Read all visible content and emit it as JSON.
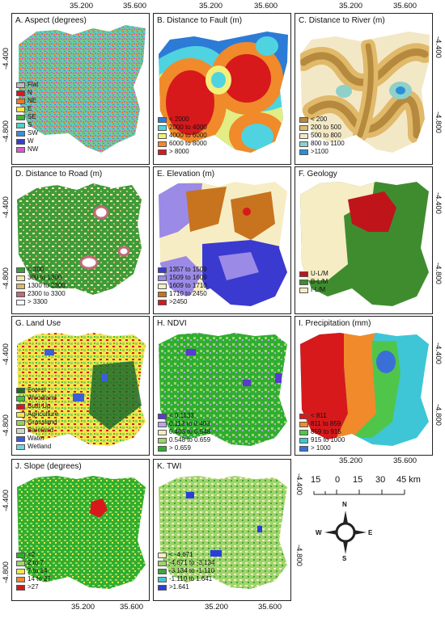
{
  "coords": {
    "top_x": [
      "35.200",
      "35.600",
      "35.200",
      "35.600",
      "35.200",
      "35.600"
    ],
    "bottom_x": [
      "35.200",
      "35.600",
      "35.200",
      "35.600",
      "35.200",
      "35.600"
    ],
    "left_y": [
      "-4.400",
      "-4.800",
      "-4.400",
      "-4.800",
      "-4.400",
      "-4.800",
      "-4.400",
      "-4.800"
    ],
    "right_y": [
      "-4.400",
      "-4.800",
      "-4.400",
      "-4.800",
      "-4.400",
      "-4.800",
      "-4.400",
      "-4.800"
    ]
  },
  "panels": [
    {
      "title": "A. Aspect (degrees)",
      "legend": [
        {
          "label": "Flat",
          "color": "#bdbdbd"
        },
        {
          "label": "N",
          "color": "#d7191c"
        },
        {
          "label": "NE",
          "color": "#e97a25"
        },
        {
          "label": "E",
          "color": "#f7e83a"
        },
        {
          "label": "SE",
          "color": "#3cb43c"
        },
        {
          "label": "S",
          "color": "#4fd3c8"
        },
        {
          "label": "SW",
          "color": "#3a8fd8"
        },
        {
          "label": "W",
          "color": "#3a3ad0"
        },
        {
          "label": "NW",
          "color": "#d85ad2"
        }
      ]
    },
    {
      "title": "B. Distance to Fault (m)",
      "legend": [
        {
          "label": "< 2000",
          "color": "#2c7bd6"
        },
        {
          "label": "2000 to 4000",
          "color": "#4fd3e0"
        },
        {
          "label": "4000 to 6000",
          "color": "#f2f07a"
        },
        {
          "label": "6000 to 8000",
          "color": "#f08a2a"
        },
        {
          "label": "> 8000",
          "color": "#d7191c"
        }
      ]
    },
    {
      "title": "C. Distance to River (m)",
      "legend": [
        {
          "label": "< 200",
          "color": "#b58a3e"
        },
        {
          "label": "200 to 500",
          "color": "#e0b96a"
        },
        {
          "label": "500 to 800",
          "color": "#f3e8c6"
        },
        {
          "label": "800 to 1100",
          "color": "#8fd0c9"
        },
        {
          "label": ">1100",
          "color": "#2a8fd8"
        }
      ]
    },
    {
      "title": "D. Distance to Road (m)",
      "legend": [
        {
          "label": "< 300",
          "color": "#3d9b3a"
        },
        {
          "label": "300 to 1300",
          "color": "#f3e5a8"
        },
        {
          "label": "1300 to 2300",
          "color": "#d8b86a"
        },
        {
          "label": "2300 to 3300",
          "color": "#c06a7a"
        },
        {
          "label": "> 3300",
          "color": "#ffffff"
        }
      ]
    },
    {
      "title": "E. Elevation (m)",
      "legend": [
        {
          "label": "1357 to 1509",
          "color": "#3a3ad0"
        },
        {
          "label": "1509 to 1609",
          "color": "#9b8ae6"
        },
        {
          "label": "1609 to 1710",
          "color": "#f6edc4"
        },
        {
          "label": "1710 to 2450",
          "color": "#c8731e"
        },
        {
          "label": ">2450",
          "color": "#d7191c"
        }
      ]
    },
    {
      "title": "F. Geology",
      "legend": [
        {
          "label": "U-L/M",
          "color": "#c0141b"
        },
        {
          "label": "B-L/M",
          "color": "#3f8c2f"
        },
        {
          "label": "I-L/M",
          "color": "#f6edc4"
        }
      ]
    },
    {
      "title": "G. Land Use",
      "legend": [
        {
          "label": "Forest",
          "color": "#1f6b2a"
        },
        {
          "label": "Woodland",
          "color": "#3bc43b"
        },
        {
          "label": "Built-Up",
          "color": "#d7191c"
        },
        {
          "label": "Agriculture",
          "color": "#f2e64a"
        },
        {
          "label": "Grassland",
          "color": "#9ccf5a"
        },
        {
          "label": "Bareland",
          "color": "#d6d6c8"
        },
        {
          "label": "Water",
          "color": "#3a5fd8"
        },
        {
          "label": "Wetland",
          "color": "#6fd6e0"
        }
      ]
    },
    {
      "title": "H. NDVI",
      "legend": [
        {
          "label": "< 0.1133",
          "color": "#5a3ad0"
        },
        {
          "label": "0.113 to  0.403",
          "color": "#b9a6ee"
        },
        {
          "label": "0.403 to 0.548",
          "color": "#f6edc4"
        },
        {
          "label": "0.548 to 0.659",
          "color": "#9ed46a"
        },
        {
          "label": "> 0.659",
          "color": "#2fae2f"
        }
      ]
    },
    {
      "title": "I. Precipitation (mm)",
      "legend": [
        {
          "label": "< 811",
          "color": "#d7191c"
        },
        {
          "label": "811 to 859",
          "color": "#f08a2a"
        },
        {
          "label": "859 to 915",
          "color": "#4fc64a"
        },
        {
          "label": "915 to 1000",
          "color": "#3ec6d6"
        },
        {
          "label": "> 1000",
          "color": "#3a6fd8"
        }
      ]
    },
    {
      "title": "J. Slope (degrees)",
      "legend": [
        {
          "label": "<2",
          "color": "#2fae2f"
        },
        {
          "label": "2 to 7",
          "color": "#9ed46a"
        },
        {
          "label": "7 to 14",
          "color": "#f2e64a"
        },
        {
          "label": "14 to 27",
          "color": "#f08a2a"
        },
        {
          "label": ">27",
          "color": "#d7191c"
        }
      ]
    },
    {
      "title": "K. TWI",
      "legend": [
        {
          "label": "< -4.671",
          "color": "#f6edc4"
        },
        {
          "label": "-4.671 to -3.134",
          "color": "#9ed46a"
        },
        {
          "label": "-3.134 to -1.110",
          "color": "#3fa33f"
        },
        {
          "label": "-1.110 to 1.641",
          "color": "#3ec6d6"
        },
        {
          "label": ">1.641",
          "color": "#2a3fd8"
        }
      ]
    }
  ],
  "scale": {
    "labels": [
      "15",
      "0",
      "15",
      "30",
      "45 km"
    ]
  },
  "north": {
    "n": "N",
    "s": "S",
    "e": "E",
    "w": "W"
  }
}
